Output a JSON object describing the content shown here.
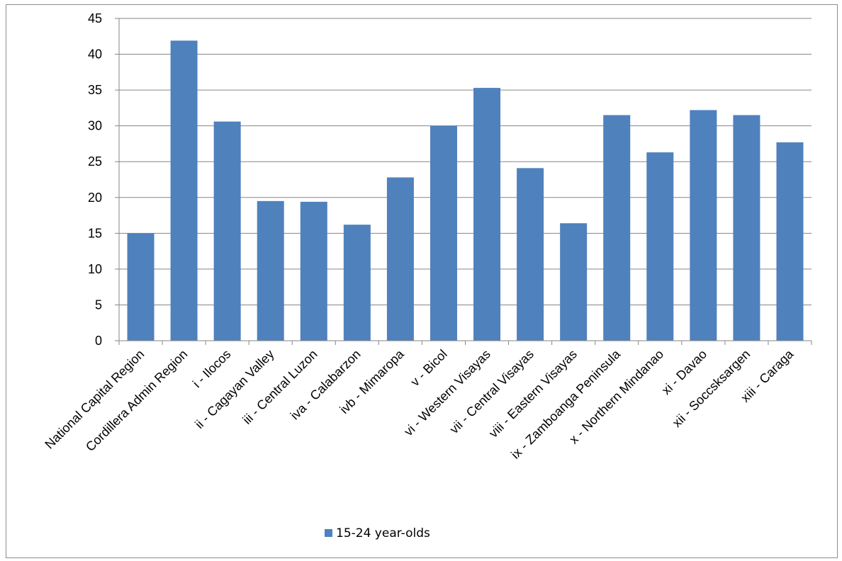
{
  "chart_data": {
    "type": "bar",
    "categories": [
      "National Capital Region",
      "Cordillera Admin Region",
      "i - Ilocos",
      "ii - Cagayan Valley",
      "iii - Central Luzon",
      "iva - Calabarzon",
      "ivb - Mimaropa",
      "v - Bicol",
      "vi - Western Visayas",
      "vii - Central Visayas",
      "viii - Eastern Visayas",
      "ix - Zamboanga Peninsula",
      "x - Northern Mindanao",
      "xi - Davao",
      "xii - Soccsksargen",
      "xiii - Caraga"
    ],
    "series": [
      {
        "name": "15-24 year-olds",
        "values": [
          15.0,
          41.9,
          30.6,
          19.5,
          19.4,
          16.2,
          22.8,
          30.0,
          35.3,
          24.1,
          16.4,
          31.5,
          26.3,
          32.2,
          31.5,
          27.7
        ]
      }
    ],
    "ylim": [
      0,
      45
    ],
    "yticks": [
      0,
      5,
      10,
      15,
      20,
      25,
      30,
      35,
      40,
      45
    ],
    "grid": true,
    "legend_position": "bottom",
    "colors": {
      "bar": "#4f81bd",
      "grid": "#868686",
      "axis": "#868686"
    }
  }
}
